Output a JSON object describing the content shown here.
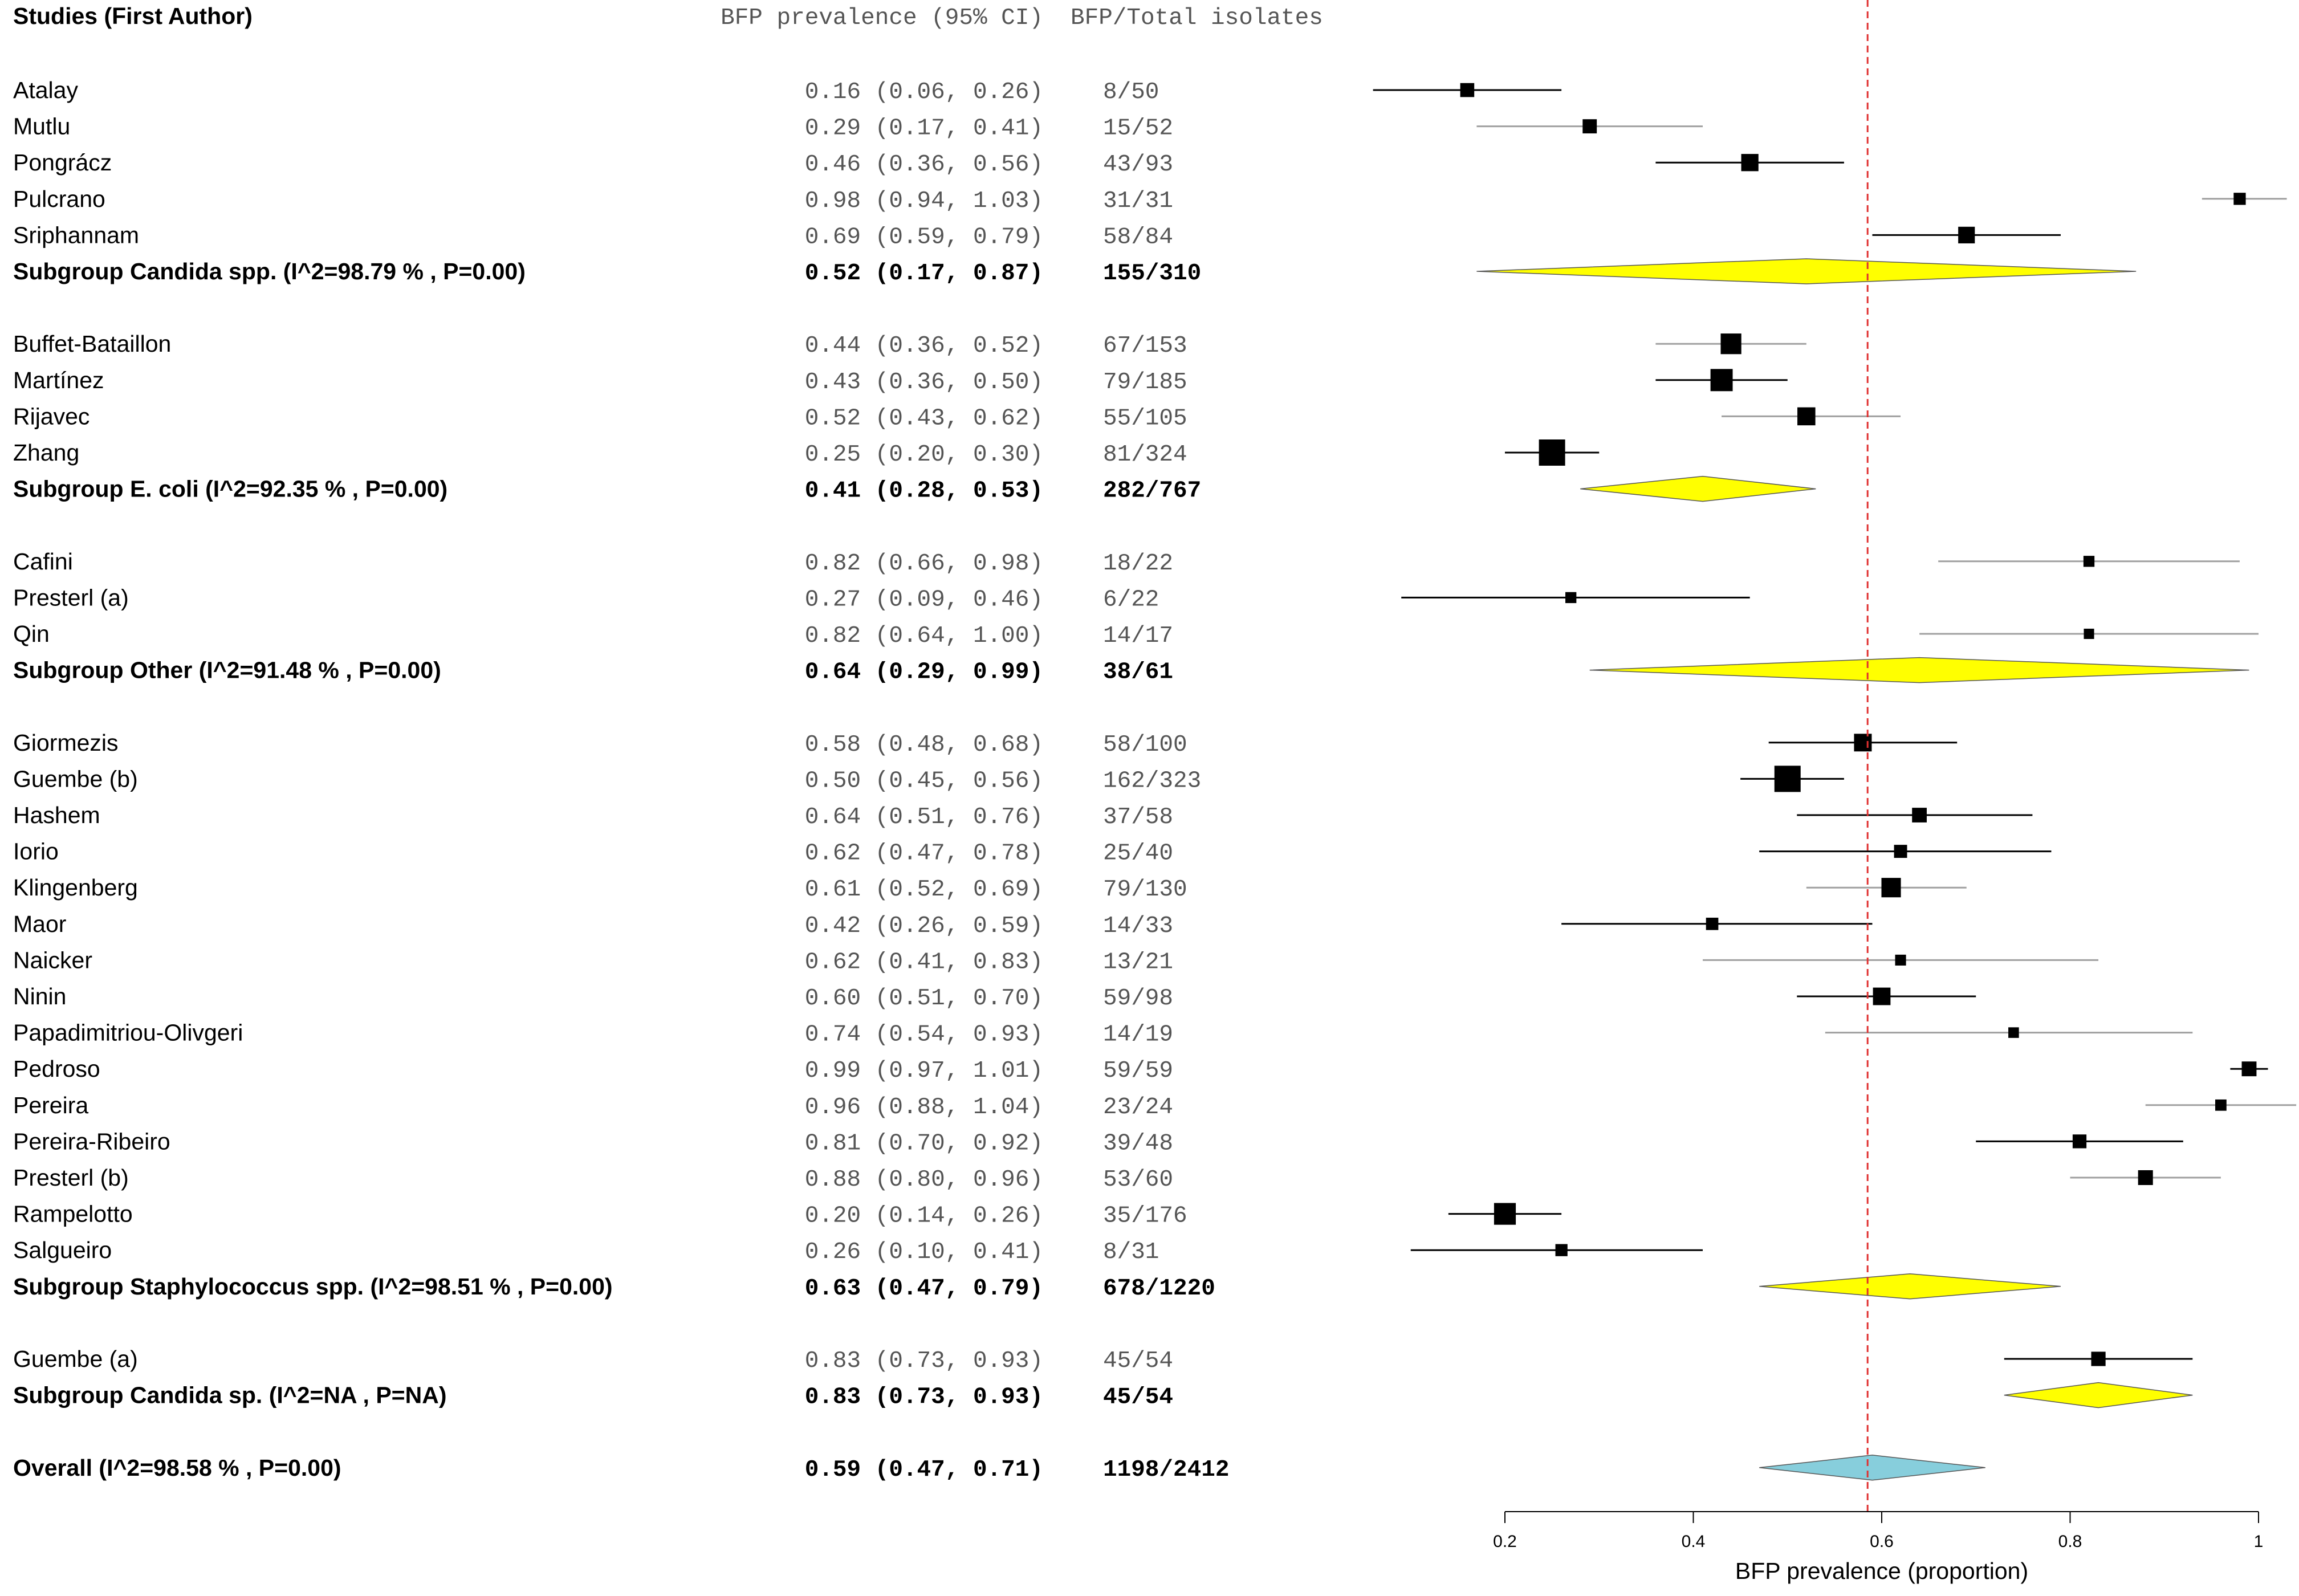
{
  "chart_data": {
    "type": "forest",
    "headers": {
      "study": "Studies (First Author)",
      "prevalence": "BFP prevalence (95% CI)",
      "counts": "BFP/Total isolates"
    },
    "x_axis": {
      "label": "BFP prevalence (proportion)",
      "range": [
        0.2,
        1.0
      ],
      "ticks": [
        0.2,
        0.4,
        0.6,
        0.8,
        1.0
      ],
      "tick_labels": [
        "0.2",
        "0.4",
        "0.6",
        "0.8",
        "1"
      ]
    },
    "reference_line": 0.585,
    "colors": {
      "subgroup_diamond": "#ffff00",
      "overall_diamond": "#87cedc",
      "reference_line": "#e03030",
      "ci_dark": "#000000",
      "ci_light": "#a0a0a0"
    },
    "rows": [
      {
        "type": "study",
        "name": "Atalay",
        "est": 0.16,
        "lo": 0.06,
        "hi": 0.26,
        "prev": "0.16 (0.06, 0.26)",
        "count": "8/50",
        "light": false
      },
      {
        "type": "study",
        "name": "Mutlu",
        "est": 0.29,
        "lo": 0.17,
        "hi": 0.41,
        "prev": "0.29 (0.17, 0.41)",
        "count": "15/52",
        "light": true
      },
      {
        "type": "study",
        "name": "Pongrácz",
        "est": 0.46,
        "lo": 0.36,
        "hi": 0.56,
        "prev": "0.46 (0.36, 0.56)",
        "count": "43/93",
        "light": false
      },
      {
        "type": "study",
        "name": "Pulcrano",
        "est": 0.98,
        "lo": 0.94,
        "hi": 1.03,
        "prev": "0.98 (0.94, 1.03)",
        "count": "31/31",
        "light": true
      },
      {
        "type": "study",
        "name": "Sriphannam",
        "est": 0.69,
        "lo": 0.59,
        "hi": 0.79,
        "prev": "0.69 (0.59, 0.79)",
        "count": "58/84",
        "light": false
      },
      {
        "type": "subgroup",
        "name": "Subgroup Candida spp. (I^2=98.79 % , P=0.00)",
        "est": 0.52,
        "lo": 0.17,
        "hi": 0.87,
        "prev": "0.52 (0.17, 0.87)",
        "count": "155/310"
      },
      {
        "type": "blank"
      },
      {
        "type": "study",
        "name": "Buffet-Bataillon",
        "est": 0.44,
        "lo": 0.36,
        "hi": 0.52,
        "prev": "0.44 (0.36, 0.52)",
        "count": "67/153",
        "light": true
      },
      {
        "type": "study",
        "name": "Martínez",
        "est": 0.43,
        "lo": 0.36,
        "hi": 0.5,
        "prev": "0.43 (0.36, 0.50)",
        "count": "79/185",
        "light": false
      },
      {
        "type": "study",
        "name": "Rijavec",
        "est": 0.52,
        "lo": 0.43,
        "hi": 0.62,
        "prev": "0.52 (0.43, 0.62)",
        "count": "55/105",
        "light": true
      },
      {
        "type": "study",
        "name": "Zhang",
        "est": 0.25,
        "lo": 0.2,
        "hi": 0.3,
        "prev": "0.25 (0.20, 0.30)",
        "count": "81/324",
        "light": false
      },
      {
        "type": "subgroup",
        "name": "Subgroup E. coli (I^2=92.35 % , P=0.00)",
        "est": 0.41,
        "lo": 0.28,
        "hi": 0.53,
        "prev": "0.41 (0.28, 0.53)",
        "count": "282/767"
      },
      {
        "type": "blank"
      },
      {
        "type": "study",
        "name": "Cafini",
        "est": 0.82,
        "lo": 0.66,
        "hi": 0.98,
        "prev": "0.82 (0.66, 0.98)",
        "count": "18/22",
        "light": true
      },
      {
        "type": "study",
        "name": "Presterl (a)",
        "est": 0.27,
        "lo": 0.09,
        "hi": 0.46,
        "prev": "0.27 (0.09, 0.46)",
        "count": "6/22",
        "light": false
      },
      {
        "type": "study",
        "name": "Qin",
        "est": 0.82,
        "lo": 0.64,
        "hi": 1.0,
        "prev": "0.82 (0.64, 1.00)",
        "count": "14/17",
        "light": true
      },
      {
        "type": "subgroup",
        "name": "Subgroup Other (I^2=91.48 % , P=0.00)",
        "est": 0.64,
        "lo": 0.29,
        "hi": 0.99,
        "prev": "0.64 (0.29, 0.99)",
        "count": "38/61"
      },
      {
        "type": "blank"
      },
      {
        "type": "study",
        "name": "Giormezis",
        "est": 0.58,
        "lo": 0.48,
        "hi": 0.68,
        "prev": "0.58 (0.48, 0.68)",
        "count": "58/100",
        "light": false
      },
      {
        "type": "study",
        "name": "Guembe (b)",
        "est": 0.5,
        "lo": 0.45,
        "hi": 0.56,
        "prev": "0.50 (0.45, 0.56)",
        "count": "162/323",
        "light": false
      },
      {
        "type": "study",
        "name": "Hashem",
        "est": 0.64,
        "lo": 0.51,
        "hi": 0.76,
        "prev": "0.64 (0.51, 0.76)",
        "count": "37/58",
        "light": false
      },
      {
        "type": "study",
        "name": "Iorio",
        "est": 0.62,
        "lo": 0.47,
        "hi": 0.78,
        "prev": "0.62 (0.47, 0.78)",
        "count": "25/40",
        "light": false
      },
      {
        "type": "study",
        "name": "Klingenberg",
        "est": 0.61,
        "lo": 0.52,
        "hi": 0.69,
        "prev": "0.61 (0.52, 0.69)",
        "count": "79/130",
        "light": true
      },
      {
        "type": "study",
        "name": "Maor",
        "est": 0.42,
        "lo": 0.26,
        "hi": 0.59,
        "prev": "0.42 (0.26, 0.59)",
        "count": "14/33",
        "light": false
      },
      {
        "type": "study",
        "name": "Naicker",
        "est": 0.62,
        "lo": 0.41,
        "hi": 0.83,
        "prev": "0.62 (0.41, 0.83)",
        "count": "13/21",
        "light": true
      },
      {
        "type": "study",
        "name": "Ninin",
        "est": 0.6,
        "lo": 0.51,
        "hi": 0.7,
        "prev": "0.60 (0.51, 0.70)",
        "count": "59/98",
        "light": false
      },
      {
        "type": "study",
        "name": "Papadimitriou-Olivgeri",
        "est": 0.74,
        "lo": 0.54,
        "hi": 0.93,
        "prev": "0.74 (0.54, 0.93)",
        "count": "14/19",
        "light": true
      },
      {
        "type": "study",
        "name": "Pedroso",
        "est": 0.99,
        "lo": 0.97,
        "hi": 1.01,
        "prev": "0.99 (0.97, 1.01)",
        "count": "59/59",
        "light": false
      },
      {
        "type": "study",
        "name": "Pereira",
        "est": 0.96,
        "lo": 0.88,
        "hi": 1.04,
        "prev": "0.96 (0.88, 1.04)",
        "count": "23/24",
        "light": true
      },
      {
        "type": "study",
        "name": "Pereira-Ribeiro",
        "est": 0.81,
        "lo": 0.7,
        "hi": 0.92,
        "prev": "0.81 (0.70, 0.92)",
        "count": "39/48",
        "light": false
      },
      {
        "type": "study",
        "name": "Presterl (b)",
        "est": 0.88,
        "lo": 0.8,
        "hi": 0.96,
        "prev": "0.88 (0.80, 0.96)",
        "count": "53/60",
        "light": true
      },
      {
        "type": "study",
        "name": "Rampelotto",
        "est": 0.2,
        "lo": 0.14,
        "hi": 0.26,
        "prev": "0.20 (0.14, 0.26)",
        "count": "35/176",
        "light": false
      },
      {
        "type": "study",
        "name": "Salgueiro",
        "est": 0.26,
        "lo": 0.1,
        "hi": 0.41,
        "prev": "0.26 (0.10, 0.41)",
        "count": "8/31",
        "light": false
      },
      {
        "type": "subgroup",
        "name": "Subgroup Staphylococcus spp. (I^2=98.51 % , P=0.00)",
        "est": 0.63,
        "lo": 0.47,
        "hi": 0.79,
        "prev": "0.63 (0.47, 0.79)",
        "count": "678/1220"
      },
      {
        "type": "blank"
      },
      {
        "type": "study",
        "name": "Guembe (a)",
        "est": 0.83,
        "lo": 0.73,
        "hi": 0.93,
        "prev": "0.83 (0.73, 0.93)",
        "count": "45/54",
        "light": false
      },
      {
        "type": "subgroup",
        "name": "Subgroup Candida sp. (I^2=NA , P=NA)",
        "est": 0.83,
        "lo": 0.73,
        "hi": 0.93,
        "prev": "0.83 (0.73, 0.93)",
        "count": "45/54"
      },
      {
        "type": "blank"
      },
      {
        "type": "overall",
        "name": "Overall (I^2=98.58 % , P=0.00)",
        "est": 0.59,
        "lo": 0.47,
        "hi": 0.71,
        "prev": "0.59 (0.47, 0.71)",
        "count": "1198/2412"
      }
    ]
  }
}
